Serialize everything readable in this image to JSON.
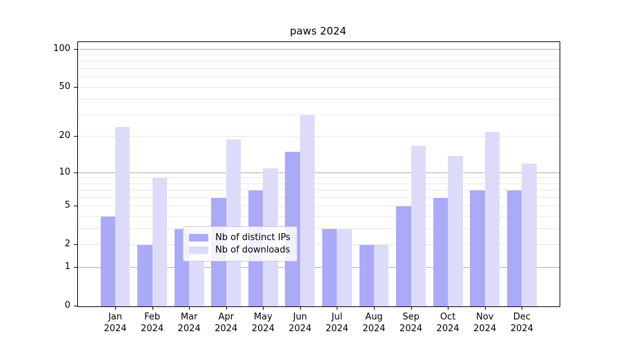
{
  "title": "paws 2024",
  "colors": {
    "ips_bar": "#aaaaf8",
    "downloads_bar": "#dcdcfa",
    "major_grid": "#b0b0b0",
    "minor_grid": "#e9e9e9",
    "axis": "#000000",
    "legend_border": "#cccccc"
  },
  "legend": {
    "entries": [
      {
        "label": "Nb of distinct IPs"
      },
      {
        "label": "Nb of downloads"
      }
    ],
    "position": "lower center"
  },
  "chart_data": {
    "type": "bar",
    "title": "paws 2024",
    "categories": [
      "Jan 2024",
      "Feb 2024",
      "Mar 2024",
      "Apr 2024",
      "May 2024",
      "Jun 2024",
      "Jul 2024",
      "Aug 2024",
      "Sep 2024",
      "Oct 2024",
      "Nov 2024",
      "Dec 2024"
    ],
    "series": [
      {
        "name": "Nb of distinct IPs",
        "color": "#aaaaf8",
        "values": [
          4,
          2,
          3,
          6,
          7,
          15,
          3,
          2,
          5,
          6,
          7,
          7
        ]
      },
      {
        "name": "Nb of downloads",
        "color": "#dcdcfa",
        "values": [
          24,
          9,
          3,
          19,
          11,
          30,
          3,
          2,
          17,
          14,
          22,
          12
        ]
      }
    ],
    "xlabel": "",
    "ylabel": "",
    "yscale": "log1p",
    "ylim": [
      0,
      115
    ],
    "y_ticks": [
      {
        "value": 0,
        "label": "0"
      },
      {
        "value": 1,
        "label": "1"
      },
      {
        "value": 2,
        "label": "2"
      },
      {
        "value": 5,
        "label": "5"
      },
      {
        "value": 10,
        "label": "10"
      },
      {
        "value": 20,
        "label": "20"
      },
      {
        "value": 50,
        "label": "50"
      },
      {
        "value": 100,
        "label": "100"
      }
    ],
    "y_major_gridlines": [
      1,
      10,
      100
    ],
    "y_minor_gridlines": [
      2,
      3,
      4,
      5,
      6,
      7,
      8,
      9,
      20,
      30,
      40,
      50,
      60,
      70,
      80,
      90
    ],
    "grid": true,
    "legend_position": "lower center"
  }
}
